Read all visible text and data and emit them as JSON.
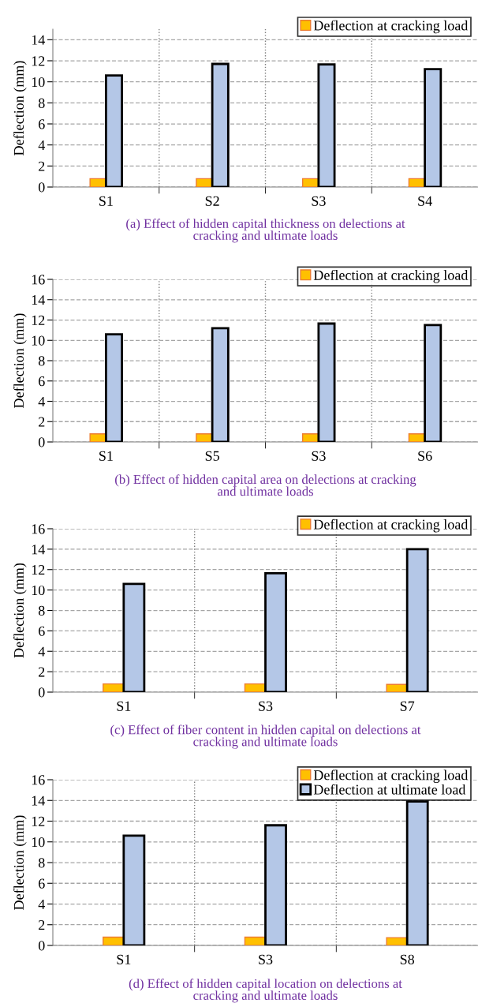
{
  "chart_data": [
    {
      "type": "bar",
      "annotations": [
        "(a) Effect of hidden capital thickness on delections at\ncracking and ultimate loads"
      ],
      "ylabel": "Deflection (mm)",
      "categories": [
        "S1",
        "S2",
        "S3",
        "S4"
      ],
      "series": [
        {
          "name": "Deflection at cracking load",
          "color": "#ffc000",
          "values": [
            0.8,
            0.8,
            0.8,
            0.8
          ]
        },
        {
          "color": "#b4c7e7",
          "values": [
            10.6,
            11.7,
            11.65,
            11.2
          ]
        }
      ],
      "ylim": [
        0,
        15
      ],
      "yticks": [
        0,
        2,
        4,
        6,
        8,
        10,
        12,
        14
      ],
      "grid": true,
      "legend": "top right"
    },
    {
      "type": "bar",
      "annotations": [
        "(b) Effect of hidden capital area on delections at cracking\nand ultimate loads"
      ],
      "ylabel": "Deflection (mm)",
      "categories": [
        "S1",
        "S5",
        "S3",
        "S6"
      ],
      "series": [
        {
          "name": "Deflection at cracking load",
          "color": "#ffc000",
          "values": [
            0.8,
            0.8,
            0.8,
            0.8
          ]
        },
        {
          "color": "#b4c7e7",
          "values": [
            10.6,
            11.2,
            11.65,
            11.5
          ]
        }
      ],
      "ylim": [
        0,
        16
      ],
      "yticks": [
        0,
        2,
        4,
        6,
        8,
        10,
        12,
        14,
        16
      ],
      "grid": true,
      "legend": "top right"
    },
    {
      "type": "bar",
      "annotations": [
        "(c) Effect of fiber content in hidden capital on delections at\ncracking and ultimate loads"
      ],
      "ylabel": "Deflection (mm)",
      "categories": [
        "S1",
        "S3",
        "S7"
      ],
      "series": [
        {
          "name": "Deflection at cracking load",
          "color": "#ffc000",
          "values": [
            0.8,
            0.8,
            0.75
          ]
        },
        {
          "color": "#b4c7e7",
          "values": [
            10.6,
            11.65,
            14.0
          ]
        }
      ],
      "ylim": [
        0,
        16
      ],
      "yticks": [
        0,
        2,
        4,
        6,
        8,
        10,
        12,
        14,
        16
      ],
      "grid": true,
      "legend": "top right"
    },
    {
      "type": "bar",
      "annotations": [
        "(d) Effect of hidden capital location on delections at\ncracking and ultimate loads"
      ],
      "ylabel": "Deflection (mm)",
      "categories": [
        "S1",
        "S3",
        "S8"
      ],
      "series": [
        {
          "name": "Deflection at cracking load",
          "color": "#ffc000",
          "values": [
            0.8,
            0.8,
            0.75
          ]
        },
        {
          "name": "Deflection at ultimate load",
          "color": "#b4c7e7",
          "values": [
            10.6,
            11.6,
            13.9
          ]
        }
      ],
      "ylim": [
        0,
        16
      ],
      "yticks": [
        0,
        2,
        4,
        6,
        8,
        10,
        12,
        14,
        16
      ],
      "grid": true,
      "legend": "top right"
    }
  ]
}
